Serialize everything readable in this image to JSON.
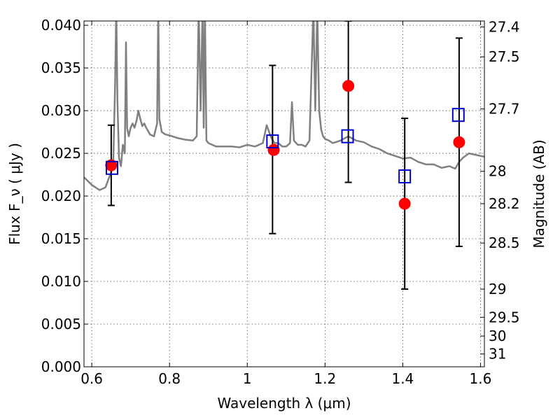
{
  "chart_data": {
    "type": "scatter",
    "title": "",
    "xlabel": "Wavelength  λ (μm)",
    "ylabel": "Flux  F_ν  ( μJy )",
    "y2label": "Magnitude (AB)",
    "xlim": [
      0.58,
      1.61
    ],
    "ylim": [
      0.0,
      0.0405
    ],
    "grid": true,
    "x_ticks": [
      0.6,
      0.8,
      1.0,
      1.2,
      1.4,
      1.6
    ],
    "x_tick_labels": [
      "0.6",
      "0.8",
      "1",
      "1.2",
      "1.4",
      "1.6"
    ],
    "y_ticks": [
      0.0,
      0.005,
      0.01,
      0.015,
      0.02,
      0.025,
      0.03,
      0.035,
      0.04
    ],
    "y_tick_labels": [
      "0.000",
      "0.005",
      "0.010",
      "0.015",
      "0.020",
      "0.025",
      "0.030",
      "0.035",
      "0.040"
    ],
    "y2_ticks": [
      {
        "label": "27.4",
        "flux": 0.0398
      },
      {
        "label": "27.5",
        "flux": 0.0363
      },
      {
        "label": "27.7",
        "flux": 0.0302
      },
      {
        "label": "28",
        "flux": 0.0229
      },
      {
        "label": "28.2",
        "flux": 0.0191
      },
      {
        "label": "28.5",
        "flux": 0.0145
      },
      {
        "label": "29",
        "flux": 0.0091
      },
      {
        "label": "29.5",
        "flux": 0.0058
      },
      {
        "label": "30",
        "flux": 0.0036
      },
      {
        "label": "31",
        "flux": 0.0015
      }
    ],
    "series": [
      {
        "kind": "line",
        "color": "#808080",
        "x": [
          0.58,
          0.6,
          0.62,
          0.635,
          0.645,
          0.655,
          0.66,
          0.663,
          0.666,
          0.67,
          0.675,
          0.68,
          0.685,
          0.688,
          0.691,
          0.695,
          0.7,
          0.705,
          0.71,
          0.715,
          0.72,
          0.725,
          0.73,
          0.735,
          0.74,
          0.75,
          0.76,
          0.768,
          0.771,
          0.774,
          0.78,
          0.79,
          0.8,
          0.82,
          0.84,
          0.86,
          0.87,
          0.875,
          0.88,
          0.885,
          0.888,
          0.891,
          0.895,
          0.9,
          0.92,
          0.94,
          0.96,
          0.98,
          1.0,
          1.02,
          1.04,
          1.05,
          1.06,
          1.07,
          1.08,
          1.09,
          1.1,
          1.11,
          1.115,
          1.12,
          1.13,
          1.14,
          1.15,
          1.16,
          1.17,
          1.175,
          1.18,
          1.185,
          1.19,
          1.195,
          1.2,
          1.21,
          1.22,
          1.24,
          1.26,
          1.28,
          1.3,
          1.32,
          1.34,
          1.36,
          1.38,
          1.4,
          1.42,
          1.44,
          1.46,
          1.48,
          1.5,
          1.52,
          1.535,
          1.545,
          1.555,
          1.57,
          1.59,
          1.61
        ],
        "y": [
          0.0222,
          0.0213,
          0.0207,
          0.021,
          0.0222,
          0.0235,
          0.033,
          0.042,
          0.031,
          0.0245,
          0.0235,
          0.026,
          0.025,
          0.038,
          0.028,
          0.027,
          0.028,
          0.0285,
          0.028,
          0.0288,
          0.03,
          0.029,
          0.0282,
          0.0285,
          0.028,
          0.0272,
          0.027,
          0.0285,
          0.042,
          0.029,
          0.0275,
          0.0272,
          0.0271,
          0.0268,
          0.0266,
          0.0265,
          0.027,
          0.042,
          0.03,
          0.042,
          0.028,
          0.042,
          0.0265,
          0.0262,
          0.0258,
          0.0258,
          0.0258,
          0.0257,
          0.026,
          0.0258,
          0.0262,
          0.0283,
          0.027,
          0.0262,
          0.0262,
          0.0258,
          0.0258,
          0.0262,
          0.031,
          0.0265,
          0.026,
          0.026,
          0.0258,
          0.0265,
          0.042,
          0.03,
          0.042,
          0.03,
          0.0278,
          0.027,
          0.0267,
          0.0265,
          0.0262,
          0.0265,
          0.027,
          0.0265,
          0.0263,
          0.0258,
          0.0255,
          0.025,
          0.0247,
          0.0244,
          0.0245,
          0.024,
          0.0237,
          0.0237,
          0.0233,
          0.0235,
          0.0232,
          0.024,
          0.0245,
          0.025,
          0.0248,
          0.0246
        ]
      },
      {
        "kind": "errorbar",
        "color": "#000000",
        "x": [
          0.65,
          1.065,
          1.26,
          1.405,
          1.545
        ],
        "y_low": [
          0.0189,
          0.0156,
          0.0216,
          0.0091,
          0.0141
        ],
        "y_high": [
          0.0283,
          0.0353,
          0.0405,
          0.0291,
          0.0385
        ]
      },
      {
        "kind": "marker-circle",
        "color": "#ff0000",
        "x": [
          0.65,
          1.068,
          1.26,
          1.405,
          1.545
        ],
        "y": [
          0.0236,
          0.0254,
          0.0329,
          0.0191,
          0.0263
        ]
      },
      {
        "kind": "marker-square-open",
        "color": "#0000cc",
        "x": [
          0.652,
          1.065,
          1.258,
          1.405,
          1.543
        ],
        "y": [
          0.0233,
          0.0264,
          0.027,
          0.0223,
          0.0295
        ]
      }
    ]
  }
}
